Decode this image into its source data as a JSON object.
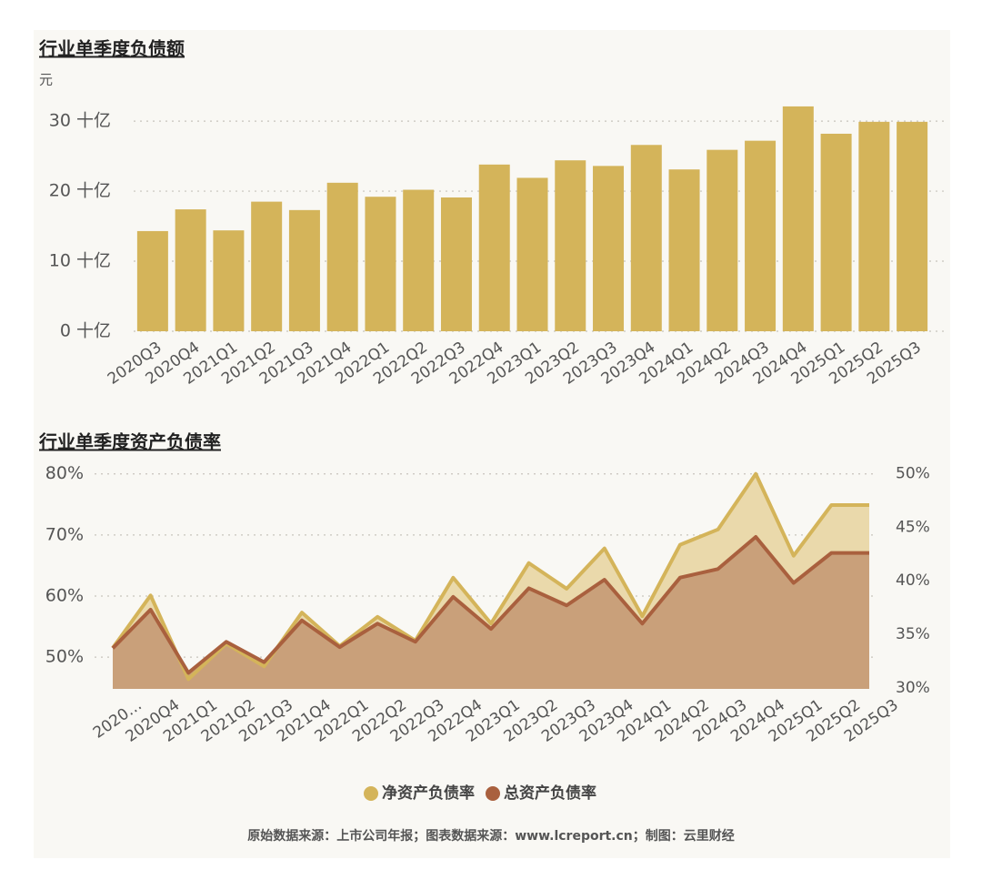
{
  "chart_data": [
    {
      "type": "bar",
      "title": "行业单季度负债额",
      "y_label": "元",
      "categories": [
        "2020Q3",
        "2020Q4",
        "2021Q1",
        "2021Q2",
        "2021Q3",
        "2021Q4",
        "2022Q1",
        "2022Q2",
        "2022Q3",
        "2022Q4",
        "2023Q1",
        "2023Q2",
        "2023Q3",
        "2023Q4",
        "2024Q1",
        "2024Q2",
        "2024Q3",
        "2024Q4",
        "2025Q1",
        "2025Q2",
        "2025Q3"
      ],
      "values": [
        14.3,
        17.4,
        14.4,
        18.5,
        17.3,
        21.2,
        19.2,
        20.2,
        19.1,
        23.8,
        21.9,
        24.4,
        23.6,
        26.6,
        23.1,
        25.9,
        27.2,
        32.1,
        28.2,
        29.9,
        29.9
      ],
      "color": "#d4b45a",
      "ylim": [
        0,
        33
      ],
      "yticks": [
        {
          "value": 0,
          "label": "0 十亿"
        },
        {
          "value": 10,
          "label": "10 十亿"
        },
        {
          "value": 20,
          "label": "20 十亿"
        },
        {
          "value": 30,
          "label": "30 十亿"
        }
      ],
      "grid": true
    },
    {
      "type": "area",
      "title": "行业单季度资产负债率",
      "categories": [
        "2020…",
        "2020Q4",
        "2021Q1",
        "2021Q2",
        "2021Q3",
        "2021Q4",
        "2022Q1",
        "2022Q2",
        "2022Q3",
        "2022Q4",
        "2023Q1",
        "2023Q2",
        "2023Q3",
        "2023Q4",
        "2024Q1",
        "2024Q2",
        "2024Q3",
        "2024Q4",
        "2025Q1",
        "2025Q2",
        "2025Q3"
      ],
      "series": [
        {
          "name": "净资产负债率",
          "color": "#d4b45a",
          "fill": "#ead9ab",
          "axis": "y",
          "values": [
            51.5,
            60.1,
            46.4,
            52.2,
            48.5,
            57.3,
            51.8,
            56.6,
            52.7,
            63.0,
            55.5,
            65.4,
            61.2,
            67.8,
            56.7,
            68.4,
            70.9,
            80.0,
            66.6,
            74.9,
            74.9
          ]
        },
        {
          "name": "总资产负债率",
          "color": "#a9603e",
          "fill": "#c9a07a",
          "axis": "y2",
          "values": [
            33.7,
            37.3,
            31.4,
            34.3,
            32.4,
            36.3,
            33.8,
            36.0,
            34.3,
            38.5,
            35.5,
            39.3,
            37.7,
            40.1,
            36.0,
            40.3,
            41.1,
            44.1,
            39.8,
            42.6,
            42.6
          ]
        }
      ],
      "ylim": [
        44.8,
        81.6
      ],
      "yticks": [
        {
          "value": 50,
          "label": "50%"
        },
        {
          "value": 60,
          "label": "60%"
        },
        {
          "value": 70,
          "label": "70%"
        },
        {
          "value": 80,
          "label": "80%"
        }
      ],
      "y2lim": [
        29.9,
        50.9
      ],
      "y2ticks": [
        {
          "value": 30,
          "label": "30%"
        },
        {
          "value": 35,
          "label": "35%"
        },
        {
          "value": 40,
          "label": "40%"
        },
        {
          "value": 45,
          "label": "45%"
        },
        {
          "value": 50,
          "label": "50%"
        }
      ],
      "grid": true
    }
  ],
  "footer": "原始数据来源：上市公司年报；图表数据来源：www.lcreport.cn；制图：云里财经"
}
